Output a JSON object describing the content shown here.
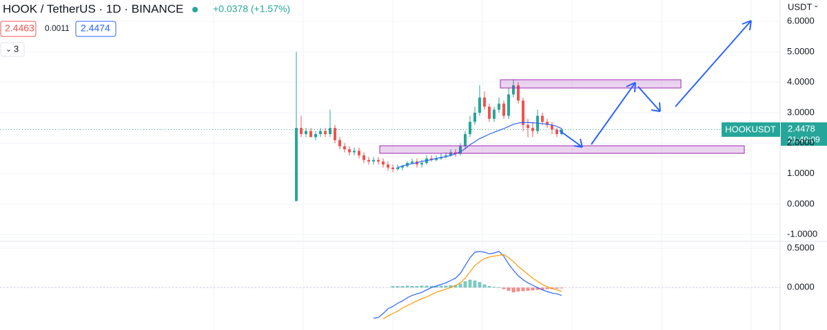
{
  "chart_data": {
    "type": "candlestick",
    "title": "HOOK / TetherUS · 1D · BINANCE",
    "change": "+0.0378 (+1.57%)",
    "legend_values": [
      "2.4463",
      "0.0011",
      "2.4474"
    ],
    "indicator_count": "3",
    "currency": "USDT",
    "symbol": "HOOKUSDT",
    "last_price": {
      "value": 2.4478,
      "label": "2.4478"
    },
    "countdown": "21:49:09",
    "up_color": "#26a69a",
    "down_color": "#ef5350",
    "ma_color": "#2962ff",
    "ylim": [
      -1.22,
      6.7
    ],
    "yticks": [
      {
        "value": 6,
        "label": "6.0000"
      },
      {
        "value": 5,
        "label": "5.0000"
      },
      {
        "value": 4,
        "label": "4.0000"
      },
      {
        "value": 3,
        "label": "3.0000"
      },
      {
        "value": 2,
        "label": "2.0000"
      },
      {
        "value": 1,
        "label": "1.0000"
      },
      {
        "value": 0,
        "label": "0.0000"
      },
      {
        "value": -1,
        "label": "-1.0000"
      }
    ],
    "open": [
      0.1,
      2.5,
      2.3,
      2.4,
      2.2,
      2.3,
      2.4,
      2.3,
      2.5,
      2.1,
      1.9,
      1.8,
      1.7,
      1.75,
      1.6,
      1.45,
      1.4,
      1.45,
      1.4,
      1.3,
      1.2,
      1.15,
      1.2,
      1.25,
      1.35,
      1.4,
      1.3,
      1.35,
      1.5,
      1.45,
      1.5,
      1.55,
      1.6,
      1.7,
      1.65,
      1.9,
      2.3,
      2.7,
      3.0,
      3.5,
      3.2,
      2.8,
      3.1,
      3.3,
      2.9,
      3.6,
      3.9,
      3.4,
      2.6,
      2.5,
      2.4,
      2.9,
      2.7,
      2.6,
      2.45,
      2.3
    ],
    "high": [
      5.0,
      2.9,
      2.5,
      2.5,
      2.4,
      2.5,
      2.5,
      3.1,
      2.6,
      2.2,
      2.0,
      1.9,
      1.85,
      1.85,
      1.7,
      1.55,
      1.55,
      1.55,
      1.5,
      1.4,
      1.3,
      1.3,
      1.3,
      1.4,
      1.5,
      1.5,
      1.45,
      1.6,
      1.6,
      1.6,
      1.65,
      1.7,
      1.8,
      1.8,
      2.0,
      2.4,
      2.9,
      3.2,
      3.9,
      3.7,
      3.3,
      3.2,
      3.5,
      3.4,
      3.8,
      4.1,
      4.0,
      3.5,
      2.8,
      2.7,
      3.1,
      3.0,
      2.8,
      2.7,
      2.5,
      2.5
    ],
    "low": [
      0.1,
      2.2,
      2.2,
      2.2,
      2.1,
      2.2,
      2.2,
      2.2,
      2.0,
      1.8,
      1.7,
      1.6,
      1.6,
      1.5,
      1.35,
      1.3,
      1.3,
      1.3,
      1.2,
      1.1,
      1.05,
      1.1,
      1.1,
      1.2,
      1.3,
      1.2,
      1.2,
      1.3,
      1.4,
      1.4,
      1.45,
      1.5,
      1.55,
      1.55,
      1.6,
      1.8,
      2.2,
      2.6,
      2.9,
      3.1,
      2.7,
      2.7,
      3.0,
      2.8,
      2.8,
      3.5,
      3.3,
      2.4,
      2.2,
      2.2,
      2.3,
      2.6,
      2.5,
      2.3,
      2.2,
      2.25
    ],
    "close": [
      2.5,
      2.3,
      2.4,
      2.2,
      2.3,
      2.4,
      2.3,
      2.5,
      2.1,
      1.9,
      1.8,
      1.7,
      1.75,
      1.6,
      1.45,
      1.4,
      1.45,
      1.4,
      1.3,
      1.2,
      1.15,
      1.2,
      1.25,
      1.35,
      1.4,
      1.3,
      1.35,
      1.5,
      1.45,
      1.5,
      1.55,
      1.6,
      1.7,
      1.65,
      1.9,
      2.3,
      2.7,
      3.0,
      3.5,
      3.2,
      2.8,
      3.1,
      3.3,
      2.9,
      3.6,
      3.9,
      3.4,
      2.6,
      2.5,
      2.4,
      2.9,
      2.7,
      2.6,
      2.45,
      2.3,
      2.45
    ],
    "ma": [
      null,
      null,
      null,
      null,
      null,
      null,
      null,
      null,
      null,
      null,
      null,
      null,
      null,
      null,
      null,
      null,
      null,
      null,
      null,
      null,
      null,
      1.2,
      1.25,
      1.3,
      1.33,
      1.36,
      1.4,
      1.43,
      1.46,
      1.5,
      1.53,
      1.56,
      1.6,
      1.65,
      1.72,
      1.82,
      1.95,
      2.05,
      2.15,
      2.22,
      2.3,
      2.36,
      2.42,
      2.48,
      2.55,
      2.62,
      2.66,
      2.68,
      2.68,
      2.67,
      2.66,
      2.64,
      2.62,
      2.6,
      2.55,
      2.48
    ],
    "macd_ylim": [
      -0.54,
      0.58
    ],
    "macd_yticks": [
      {
        "value": 0.5,
        "label": "0.5000"
      },
      {
        "value": 0,
        "label": "0.0000"
      }
    ],
    "macd_color": "#2962ff",
    "signal_color": "#ff9800",
    "macd": [
      null,
      null,
      null,
      null,
      null,
      null,
      null,
      null,
      null,
      null,
      null,
      null,
      null,
      null,
      null,
      null,
      -0.39,
      -0.38,
      -0.33,
      -0.27,
      -0.24,
      -0.2,
      -0.17,
      -0.13,
      -0.1,
      -0.08,
      -0.06,
      -0.03,
      0.0,
      0.02,
      0.04,
      0.06,
      0.09,
      0.12,
      0.18,
      0.28,
      0.38,
      0.45,
      0.46,
      0.45,
      0.43,
      0.44,
      0.46,
      0.4,
      0.3,
      0.22,
      0.15,
      0.1,
      0.06,
      0.03,
      0.0,
      -0.03,
      -0.05,
      -0.07,
      -0.08,
      -0.1
    ],
    "signal": [
      null,
      null,
      null,
      null,
      null,
      null,
      null,
      null,
      null,
      null,
      null,
      null,
      null,
      null,
      null,
      null,
      null,
      null,
      -0.4,
      -0.36,
      -0.33,
      -0.3,
      -0.26,
      -0.23,
      -0.2,
      -0.17,
      -0.14,
      -0.12,
      -0.09,
      -0.06,
      -0.04,
      -0.02,
      0.0,
      0.03,
      0.06,
      0.12,
      0.2,
      0.28,
      0.33,
      0.37,
      0.39,
      0.4,
      0.41,
      0.42,
      0.38,
      0.33,
      0.27,
      0.22,
      0.17,
      0.12,
      0.08,
      0.04,
      0.01,
      -0.01,
      -0.03,
      -0.05
    ],
    "histogram": [
      null,
      null,
      null,
      null,
      null,
      null,
      null,
      null,
      null,
      null,
      null,
      null,
      null,
      null,
      null,
      null,
      null,
      null,
      null,
      null,
      0.02,
      0.02,
      0.02,
      0.025,
      0.02,
      0.02,
      0.025,
      0.025,
      0.02,
      0.02,
      0.025,
      0.025,
      0.03,
      0.03,
      0.05,
      0.08,
      0.1,
      0.09,
      0.07,
      0.04,
      0.02,
      0.01,
      0.005,
      -0.02,
      -0.04,
      -0.06,
      -0.05,
      -0.045,
      -0.04,
      -0.035,
      -0.03,
      -0.03,
      -0.02,
      -0.02,
      -0.015,
      -0.01
    ]
  }
}
